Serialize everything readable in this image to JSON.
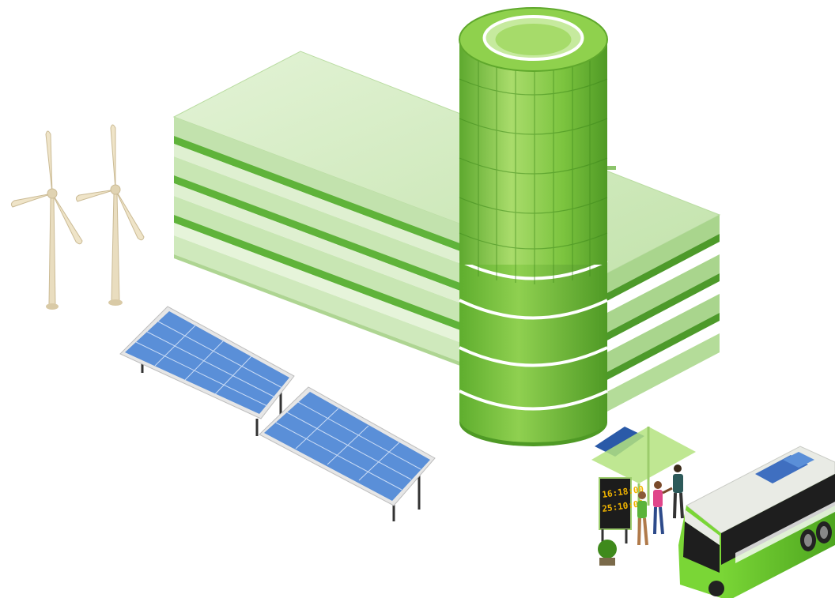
{
  "colors": {
    "building_top": "#d9efc9",
    "building_face_light": "#c8e6b3",
    "building_face_dark": "#9fd17f",
    "building_stripe": "#5fb33a",
    "tower_green": "#78c03f",
    "tower_dark": "#4f9a25",
    "tower_light": "#a6d86d",
    "solar_blue": "#5a8fd8",
    "solar_light": "#9ec2f0",
    "turbine": "#e9ddbf",
    "bus_green": "#6ccf2c",
    "bus_white": "#e9ebe5",
    "bus_black": "#1e1e1e",
    "board_text": "#f0b400"
  },
  "icons": {
    "turbine": "wind-turbine-icon",
    "solar": "solar-panel-icon",
    "bus": "electric-bus-icon",
    "building": "green-building-icon"
  },
  "bus_stop": {
    "board_line1": "16:18:00",
    "board_line2": "25:10:09"
  }
}
